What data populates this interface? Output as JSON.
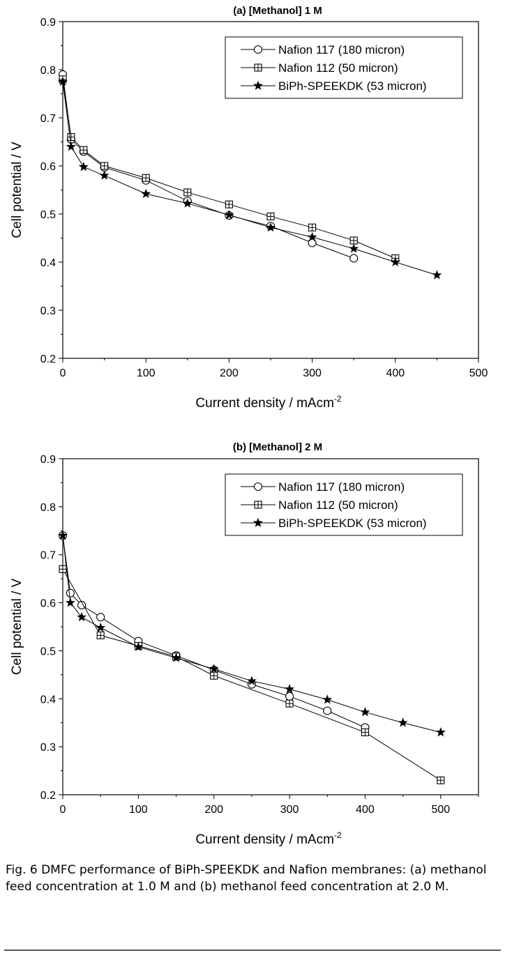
{
  "chart_data": [
    {
      "type": "line",
      "title": "(a) [Methanol] 1 M",
      "xlabel": "Current density / mAcm",
      "xlabel_sup": "-2",
      "ylabel": "Cell potential / V",
      "xlim": [
        0,
        500
      ],
      "ylim": [
        0.2,
        0.9
      ],
      "xticks": [
        0,
        100,
        200,
        300,
        400,
        500
      ],
      "yticks": [
        0.2,
        0.3,
        0.4,
        0.5,
        0.6,
        0.7,
        0.8,
        0.9
      ],
      "legend_position": "top-right",
      "series": [
        {
          "name": "Nafion 117 (180 micron)",
          "marker": "circle",
          "x": [
            0,
            10,
            25,
            50,
            100,
            150,
            200,
            250,
            300,
            350
          ],
          "y": [
            0.79,
            0.655,
            0.63,
            0.597,
            0.57,
            0.527,
            0.497,
            0.475,
            0.44,
            0.408
          ]
        },
        {
          "name": "Nafion 112 (50 micron)",
          "marker": "boxplus",
          "x": [
            0,
            10,
            25,
            50,
            100,
            150,
            200,
            250,
            300,
            350,
            400
          ],
          "y": [
            0.78,
            0.66,
            0.633,
            0.6,
            0.575,
            0.545,
            0.52,
            0.495,
            0.472,
            0.445,
            0.408
          ]
        },
        {
          "name": "BiPh-SPEEKDK (53 micron)",
          "marker": "star",
          "x": [
            0,
            10,
            25,
            50,
            100,
            150,
            200,
            250,
            300,
            350,
            400,
            450
          ],
          "y": [
            0.775,
            0.64,
            0.598,
            0.58,
            0.542,
            0.522,
            0.498,
            0.472,
            0.452,
            0.428,
            0.4,
            0.373
          ]
        }
      ]
    },
    {
      "type": "line",
      "title": "(b) [Methanol] 2 M",
      "xlabel": "Current density / mAcm",
      "xlabel_sup": "-2",
      "ylabel": "Cell potential / V",
      "xlim": [
        0,
        550
      ],
      "ylim": [
        0.2,
        0.9
      ],
      "xticks": [
        0,
        100,
        200,
        300,
        400,
        500
      ],
      "yticks": [
        0.2,
        0.3,
        0.4,
        0.5,
        0.6,
        0.7,
        0.8,
        0.9
      ],
      "legend_position": "top-right",
      "series": [
        {
          "name": "Nafion 117 (180 micron)",
          "marker": "circle",
          "x": [
            0,
            10,
            25,
            50,
            100,
            150,
            200,
            250,
            300,
            350,
            400
          ],
          "y": [
            0.74,
            0.62,
            0.595,
            0.57,
            0.52,
            0.49,
            0.46,
            0.43,
            0.405,
            0.375,
            0.34
          ]
        },
        {
          "name": "Nafion 112 (50 micron)",
          "marker": "boxplus",
          "x": [
            0,
            50,
            100,
            150,
            200,
            300,
            400,
            500
          ],
          "y": [
            0.67,
            0.532,
            0.51,
            0.488,
            0.448,
            0.39,
            0.33,
            0.23
          ]
        },
        {
          "name": "BiPh-SPEEKDK (53 micron)",
          "marker": "star",
          "x": [
            0,
            10,
            25,
            50,
            100,
            150,
            200,
            250,
            300,
            350,
            400,
            450,
            500
          ],
          "y": [
            0.74,
            0.6,
            0.57,
            0.548,
            0.508,
            0.485,
            0.462,
            0.437,
            0.42,
            0.398,
            0.372,
            0.35,
            0.33
          ]
        }
      ]
    }
  ],
  "caption": "Fig. 6  DMFC performance of BiPh-SPEEKDK and Nafion membranes: (a) methanol feed concentration at 1.0 M and (b) methanol feed concentration at 2.0 M."
}
